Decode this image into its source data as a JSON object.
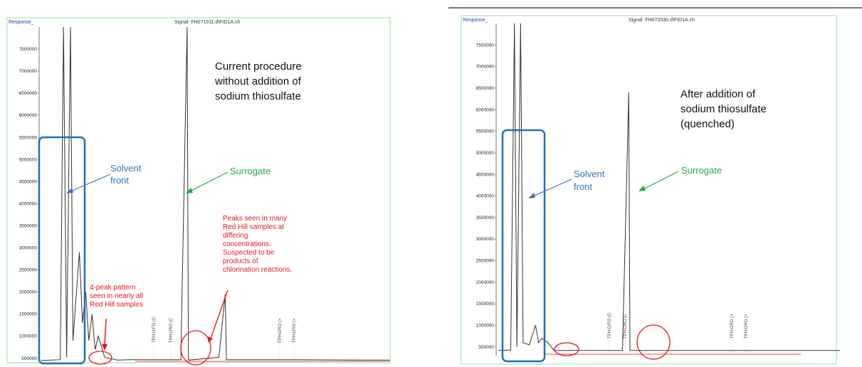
{
  "chart_data": [
    {
      "type": "line",
      "response_label": "Response_",
      "signal_title": "Signal: FH071911.d\\FID1A.ch",
      "yticks": [
        "7500000",
        "7000000",
        "6500000",
        "6000000",
        "5500000",
        "5000000",
        "4500000",
        "4000000",
        "3500000",
        "3000000",
        "2500000",
        "2000000",
        "1500000",
        "1000000",
        "500000"
      ],
      "ylim": [
        400000,
        8000000
      ],
      "main_text": [
        "Current procedure",
        "without addition of",
        "sodium thiosulfate"
      ],
      "solvent_label": [
        "Solvent",
        "front"
      ],
      "surrogate_label": "Surrogate",
      "pattern_note": [
        "4-peak pattern",
        "seen in nearly all",
        "Red Hill samples"
      ],
      "peaks_note": [
        "Peaks seen in many",
        "Red Hill samples at",
        "differing",
        "concentrations.",
        "Suspected to be",
        "products of",
        "chlorination reactions."
      ],
      "marker_labels": [
        "TPH-D/FO (C",
        "TPH-DRO (C",
        "TPH-DRO (>",
        "TPH-DRO (>"
      ],
      "series": [
        {
          "values": [
            [
              0,
              450000
            ],
            [
              3,
              470000
            ],
            [
              3.5,
              8000000
            ],
            [
              4,
              520000
            ],
            [
              4.6,
              8000000
            ],
            [
              5,
              900000
            ],
            [
              6,
              2900000
            ],
            [
              6.5,
              1300000
            ],
            [
              7,
              2000000
            ],
            [
              7.5,
              900000
            ],
            [
              8,
              1500000
            ],
            [
              8.5,
              700000
            ],
            [
              9,
              1000000
            ],
            [
              10,
              520000
            ],
            [
              12,
              460000
            ],
            [
              14,
              470000
            ],
            [
              16,
              470000
            ],
            [
              22,
              470000
            ],
            [
              23,
              8000000
            ],
            [
              23.2,
              460000
            ],
            [
              28,
              520000
            ],
            [
              29,
              1950000
            ],
            [
              29.2,
              470000
            ],
            [
              40,
              470000
            ],
            [
              50,
              460000
            ],
            [
              55,
              460000
            ]
          ]
        }
      ]
    },
    {
      "type": "line",
      "response_label": "Response_",
      "signal_title": "Signal: FH072030.d\\FID1A.ch",
      "yticks": [
        "7500000",
        "7000000",
        "6500000",
        "6000000",
        "5500000",
        "5000000",
        "4500000",
        "4000000",
        "3500000",
        "3000000",
        "2500000",
        "2000000",
        "1500000",
        "1000000",
        "500000"
      ],
      "ylim": [
        300000,
        8000000
      ],
      "main_text": [
        "After addition of",
        "sodium thiosulfate",
        "(quenched)"
      ],
      "solvent_label": [
        "Solvent",
        "front"
      ],
      "surrogate_label": "Surrogate",
      "marker_labels": [
        "TPH-D/FO (C",
        "TPH-DRO (C",
        "TPH-DRO (>",
        "TPH-DRO (>"
      ],
      "series": [
        {
          "values": [
            [
              0,
              420000
            ],
            [
              2,
              430000
            ],
            [
              2.6,
              8000000
            ],
            [
              3,
              500000
            ],
            [
              3.6,
              8000000
            ],
            [
              4,
              600000
            ],
            [
              5,
              550000
            ],
            [
              6,
              1000000
            ],
            [
              6.5,
              600000
            ],
            [
              7,
              700000
            ],
            [
              8,
              600000
            ],
            [
              9,
              420000
            ],
            [
              15,
              420000
            ],
            [
              20,
              420000
            ],
            [
              21,
              6400000
            ],
            [
              21.2,
              420000
            ],
            [
              30,
              420000
            ],
            [
              45,
              420000
            ],
            [
              55,
              420000
            ]
          ]
        }
      ]
    }
  ]
}
